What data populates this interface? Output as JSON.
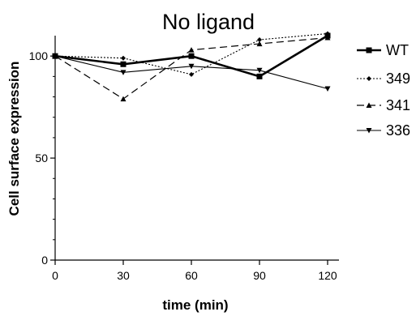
{
  "chart_data": {
    "type": "line",
    "title": "No ligand",
    "xlabel": "time (min)",
    "ylabel": "Cell surface expression",
    "x": [
      0,
      30,
      60,
      90,
      120
    ],
    "xlim": [
      0,
      125
    ],
    "ylim": [
      0,
      110
    ],
    "xticks": [
      "0",
      "30",
      "60",
      "90",
      "120"
    ],
    "yticks": [
      "0",
      "50",
      "100"
    ],
    "legend_position": "right",
    "series": [
      {
        "name": "WT",
        "values": [
          100,
          96,
          100,
          90,
          110
        ],
        "style": "solid-thick",
        "marker": "square"
      },
      {
        "name": "349",
        "values": [
          100,
          99,
          91,
          108,
          111
        ],
        "style": "dotted",
        "marker": "diamond"
      },
      {
        "name": "341",
        "values": [
          100,
          79,
          103,
          106,
          109
        ],
        "style": "dashed",
        "marker": "triangle-up"
      },
      {
        "name": "336",
        "values": [
          100,
          92,
          95,
          93,
          84
        ],
        "style": "solid-thin",
        "marker": "triangle-down"
      }
    ]
  }
}
